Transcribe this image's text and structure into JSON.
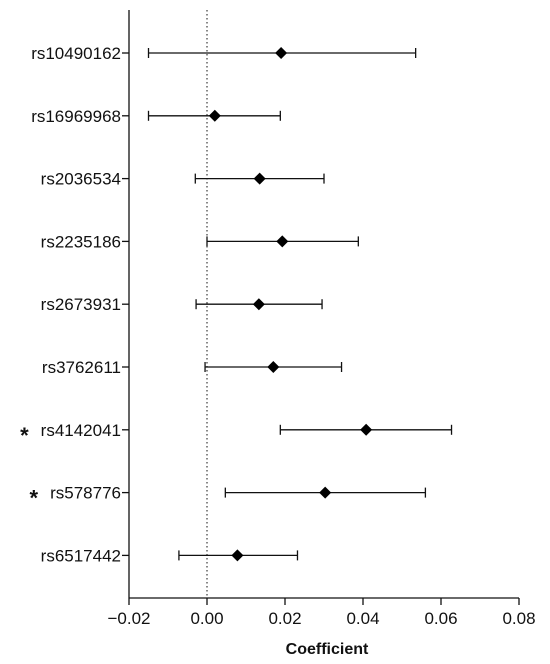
{
  "chart_data": {
    "type": "forest",
    "xlabel": "Coefficient",
    "xlim": [
      -0.02,
      0.08
    ],
    "x_ticks": [
      -0.02,
      0.0,
      0.02,
      0.04,
      0.06,
      0.08
    ],
    "x_tick_labels": [
      "−0.02",
      "0.00",
      "0.02",
      "0.04",
      "0.06",
      "0.08"
    ],
    "reference_line": 0,
    "rows": [
      {
        "label": "rs10490162",
        "estimate": 0.019,
        "lower": -0.015,
        "upper": 0.0535,
        "marker": ""
      },
      {
        "label": "rs16969968",
        "estimate": 0.002,
        "lower": -0.015,
        "upper": 0.0188,
        "marker": ""
      },
      {
        "label": "rs2036534",
        "estimate": 0.0135,
        "lower": -0.003,
        "upper": 0.03,
        "marker": ""
      },
      {
        "label": "rs2235186",
        "estimate": 0.0193,
        "lower": 0.0,
        "upper": 0.0388,
        "marker": ""
      },
      {
        "label": "rs2673931",
        "estimate": 0.0133,
        "lower": -0.0028,
        "upper": 0.0295,
        "marker": ""
      },
      {
        "label": "rs3762611",
        "estimate": 0.017,
        "lower": -0.0005,
        "upper": 0.0345,
        "marker": ""
      },
      {
        "label": "rs4142041",
        "estimate": 0.0408,
        "lower": 0.0188,
        "upper": 0.0627,
        "marker": "*"
      },
      {
        "label": "rs578776",
        "estimate": 0.0303,
        "lower": 0.0047,
        "upper": 0.056,
        "marker": "*"
      },
      {
        "label": "rs6517442",
        "estimate": 0.0078,
        "lower": -0.0072,
        "upper": 0.0232,
        "marker": ""
      }
    ]
  }
}
